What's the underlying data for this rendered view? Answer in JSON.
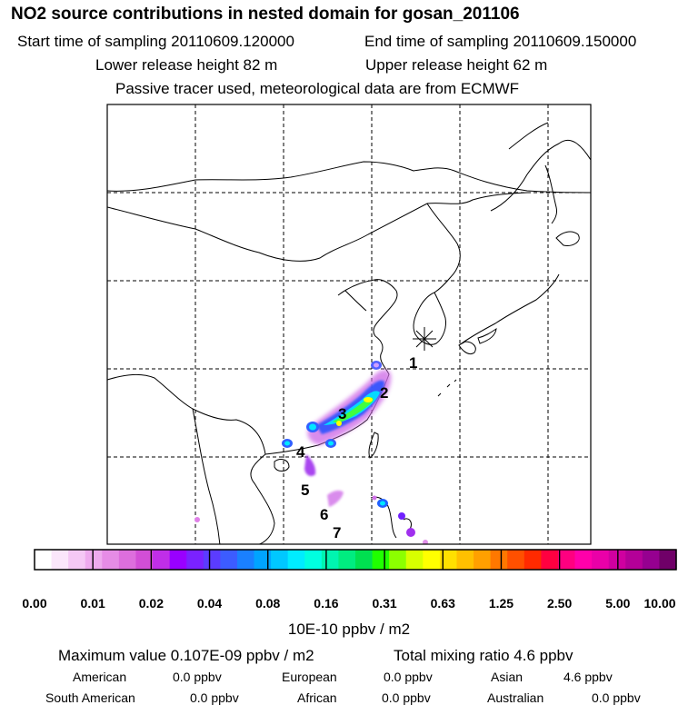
{
  "header": {
    "title": "NO2 source contributions in nested domain for gosan_201106",
    "start_time": "Start time of sampling 20110609.120000",
    "end_time": "End time of sampling 20110609.150000",
    "lower_height": "Lower release height   82 m",
    "upper_height": "Upper release height   62 m",
    "tracer_note": "Passive tracer used, meteorological data are from ECMWF"
  },
  "map": {
    "release_site_icon": "asterisk-icon",
    "track_labels": [
      "1",
      "2",
      "3",
      "4",
      "5",
      "6",
      "7"
    ]
  },
  "legend": {
    "colors": [
      "#ffffff",
      "#fbe6fb",
      "#f5c8f5",
      "#eeaaee",
      "#e68ce6",
      "#dd6edd",
      "#d24ed6",
      "#c02ee8",
      "#9900ff",
      "#7a22ff",
      "#5b3cff",
      "#3c5cff",
      "#1a80ff",
      "#00a4ff",
      "#00c8ff",
      "#00ecff",
      "#00ffe0",
      "#00f5b0",
      "#00ec80",
      "#00e050",
      "#20ff00",
      "#8cff00",
      "#d8ff00",
      "#ffff00",
      "#ffe000",
      "#ffc000",
      "#ffa000",
      "#ff7800",
      "#ff5000",
      "#ff2a00",
      "#ff0040",
      "#ff0080",
      "#ff00aa",
      "#ea00a8",
      "#d000a0",
      "#b40098",
      "#960090",
      "#700068"
    ],
    "ticks": [
      "0.00",
      "0.01",
      "0.02",
      "0.04",
      "0.08",
      "0.16",
      "0.31",
      "0.63",
      "1.25",
      "2.50",
      "5.00",
      "10.00"
    ],
    "units": "10E-10 ppbv / m2"
  },
  "stats": {
    "maximum": "Maximum value  0.107E-09 ppbv / m2",
    "total": "Total mixing ratio        4.6 ppbv",
    "american_label": "American",
    "american_value": "0.0 ppbv",
    "european_label": "European",
    "european_value": "0.0 ppbv",
    "asian_label": "Asian",
    "asian_value": "4.6 ppbv",
    "south_american_label": "South American",
    "south_american_value": "0.0 ppbv",
    "african_label": "African",
    "african_value": "0.0 ppbv",
    "australian_label": "Australian",
    "australian_value": "0.0 ppbv"
  }
}
